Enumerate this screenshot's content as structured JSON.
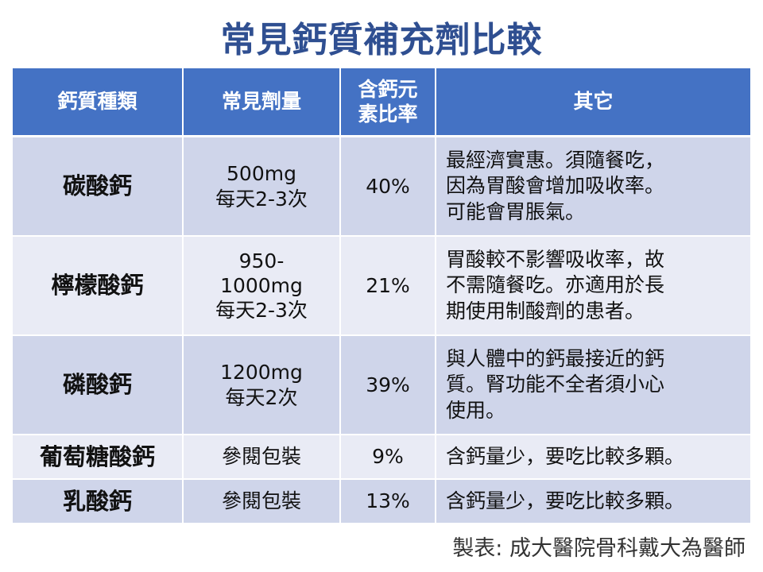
{
  "title": "常見鈣質補充劑比較",
  "table": {
    "headers": [
      "鈣質種類",
      "常見劑量",
      "含鈣元素比率",
      "其它"
    ],
    "header_lines": {
      "ratio_line1": "含鈣元",
      "ratio_line2": "素比率"
    },
    "rows": [
      {
        "name": "碳酸鈣",
        "dose": [
          "500mg",
          "每天2-3次"
        ],
        "ratio": "40%",
        "note": [
          "最經濟實惠。須隨餐吃，",
          "因為胃酸會增加吸收率。",
          "可能會胃脹氣。"
        ]
      },
      {
        "name": "檸檬酸鈣",
        "dose": [
          "950-",
          "1000mg",
          "每天2-3次"
        ],
        "ratio": "21%",
        "note": [
          "胃酸較不影響吸收率，故",
          "不需隨餐吃。亦適用於長",
          "期使用制酸劑的患者。"
        ]
      },
      {
        "name": "磷酸鈣",
        "dose": [
          "1200mg",
          "每天2次"
        ],
        "ratio": "39%",
        "note": [
          "與人體中的鈣最接近的鈣",
          "質。腎功能不全者須小心",
          "使用。"
        ]
      },
      {
        "name": "葡萄糖酸鈣",
        "dose": [
          "參閱包裝"
        ],
        "ratio": "9%",
        "note": [
          "含鈣量少，要吃比較多顆。"
        ]
      },
      {
        "name": "乳酸鈣",
        "dose": [
          "參閱包裝"
        ],
        "ratio": "13%",
        "note": [
          "含鈣量少，要吃比較多顆。"
        ]
      }
    ]
  },
  "credit": "製表: 成大醫院骨科戴大為醫師",
  "colors": {
    "title": "#2f4f91",
    "header_bg": "#4472c4",
    "row_odd": "#cfd5ea",
    "row_even": "#e9ebf5"
  }
}
